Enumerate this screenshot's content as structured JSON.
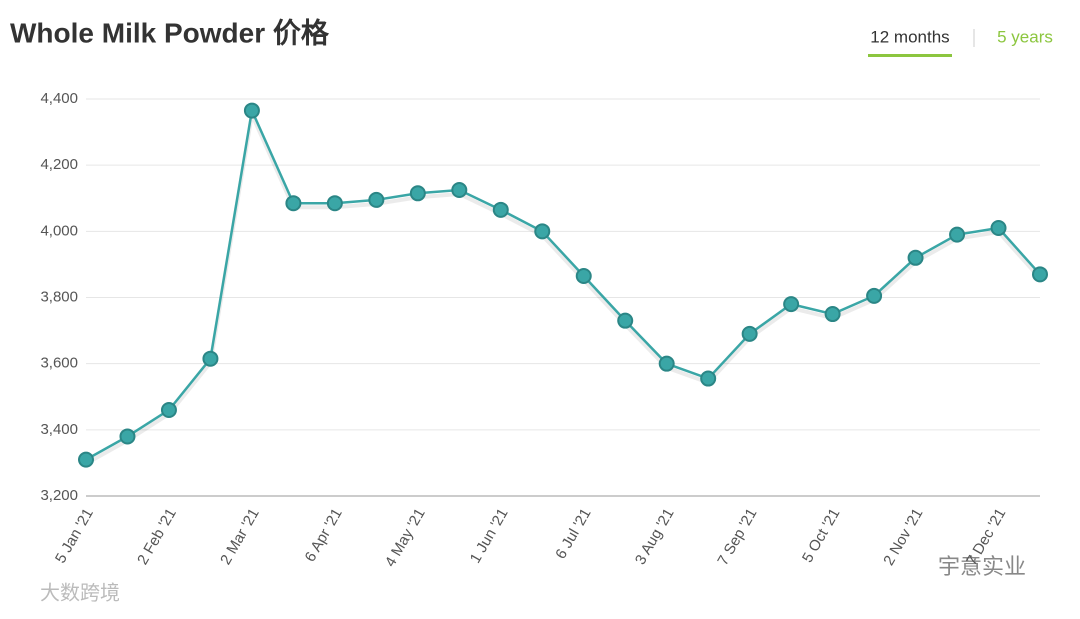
{
  "chart_data": {
    "type": "line",
    "title": "Whole Milk Powder 价格",
    "tabs": [
      "12 months",
      "5 years"
    ],
    "categories": [
      "5 Jan '21",
      null,
      "2 Feb '21",
      null,
      "2 Mar '21",
      null,
      "6 Apr '21",
      null,
      "4 May '21",
      null,
      "1 Jun '21",
      null,
      "6 Jul '21",
      null,
      "3 Aug '21",
      null,
      "7 Sep '21",
      null,
      "5 Oct '21",
      null,
      "2 Nov '21",
      null,
      "7 Dec '21",
      null
    ],
    "series": [
      {
        "color": "#3aa6a6",
        "values": [
          3310,
          3380,
          3460,
          3615,
          4365,
          4085,
          4085,
          4095,
          4115,
          4125,
          4065,
          4000,
          3865,
          3730,
          3600,
          3555,
          3690,
          3780,
          3750,
          3805,
          3920,
          3990,
          4010,
          3870
        ]
      }
    ],
    "ylim": [
      3200,
      4400
    ],
    "yticks": [
      {
        "value": 3200,
        "label": "3,200"
      },
      {
        "value": 3400,
        "label": "3,400"
      },
      {
        "value": 3600,
        "label": "3,600"
      },
      {
        "value": 3800,
        "label": "3,800"
      },
      {
        "value": 4000,
        "label": "4,000"
      },
      {
        "value": 4200,
        "label": "4,200"
      },
      {
        "value": 4400,
        "label": "4,400"
      }
    ],
    "grid": true,
    "watermarks": [
      "大数跨境",
      "宇意实业"
    ]
  }
}
